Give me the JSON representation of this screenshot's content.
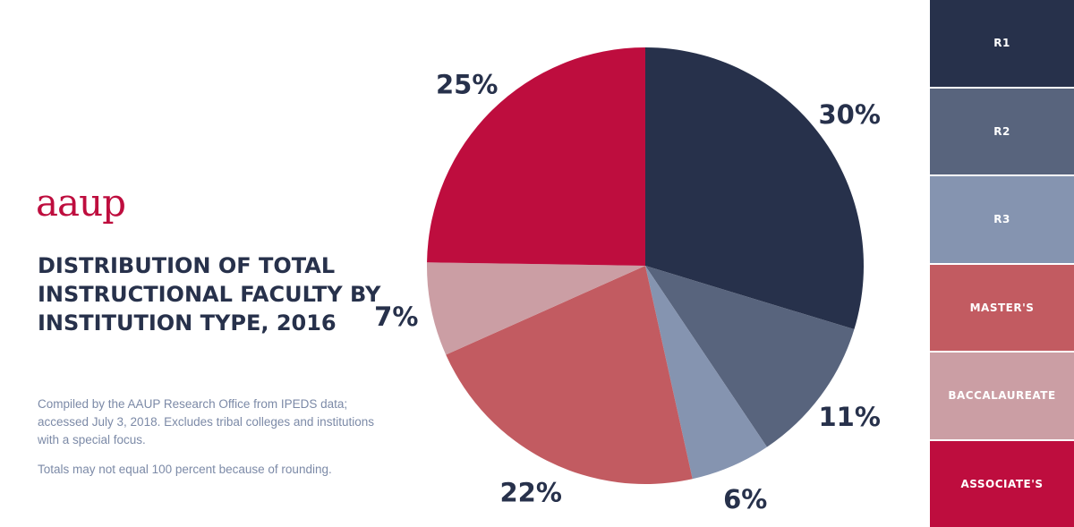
{
  "brand": {
    "logo_text": "aaup",
    "logo_color": "#be0d3e"
  },
  "title": "DISTRIBUTION OF TOTAL INSTRUCTIONAL FACULTY BY INSTITUTION TYPE, 2016",
  "notes": {
    "source": "Compiled by the AAUP Research Office from IPEDS data; accessed July 3, 2018.  Excludes tribal colleges and institutions with a special focus.",
    "rounding": "Totals may not equal 100 percent because of rounding."
  },
  "chart_data": {
    "type": "pie",
    "title": "DISTRIBUTION OF TOTAL INSTRUCTIONAL FACULTY BY INSTITUTION TYPE, 2016",
    "categories": [
      "R1",
      "R2",
      "R3",
      "MASTER'S",
      "BACCALAUREATE",
      "ASSOCIATE'S"
    ],
    "values": [
      30,
      11,
      6,
      22,
      7,
      25
    ],
    "labels": [
      "30%",
      "11%",
      "6%",
      "22%",
      "7%",
      "25%"
    ],
    "colors": [
      "#27314b",
      "#58647d",
      "#8594b0",
      "#c25b61",
      "#cb9ea4",
      "#be0d3e"
    ],
    "start": "12 o'clock, clockwise",
    "legend_position": "right"
  }
}
